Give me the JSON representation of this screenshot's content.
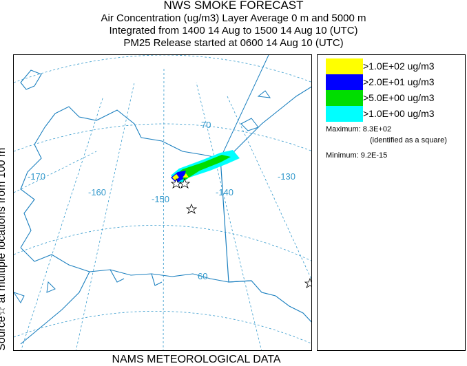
{
  "header": {
    "title": "NWS SMOKE FORECAST",
    "line2": "Air Concentration (ug/m3) Layer Average    0 m and  5000 m",
    "line3": "Integrated from 1400 14 Aug to 1500 14 Aug 10 (UTC)",
    "line4": "PM25 Release started at 0600 14 Aug 10 (UTC)"
  },
  "side_label": "Source☆ at multiple locations      from  100 m",
  "footer": "NAMS METEOROLOGICAL DATA",
  "map": {
    "lat_labels": [
      "70",
      "60"
    ],
    "lon_labels": [
      "-170",
      "-160",
      "-150",
      "-140",
      "-130"
    ],
    "graticule_color": "#3399cc",
    "coast_color": "#1a7fbf"
  },
  "legend": {
    "items": [
      {
        "label": ">1.0E+02 ug/m3",
        "color": "#ffff00"
      },
      {
        "label": ">2.0E+01 ug/m3",
        "color": "#0000ff"
      },
      {
        "label": ">5.0E+00 ug/m3",
        "color": "#00dd00"
      },
      {
        "label": ">1.0E+00 ug/m3",
        "color": "#00ffff"
      }
    ],
    "maximum_label": "Maximum: 8.3E+02",
    "maximum_note": "(identified as a square)",
    "minimum_label": "Minimum: 9.2E-15"
  }
}
